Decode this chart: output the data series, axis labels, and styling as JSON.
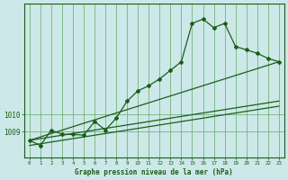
{
  "xlabel": "Graphe pression niveau de la mer (hPa)",
  "bg_color": "#cce8e8",
  "grid_color": "#66aa66",
  "line_color": "#1a5e1a",
  "xlim_min": -0.5,
  "xlim_max": 23.5,
  "ylim_min": 1007.5,
  "ylim_max": 1016.5,
  "yticks": [
    1009,
    1010
  ],
  "xtick_labels": [
    "0",
    "1",
    "2",
    "3",
    "4",
    "5",
    "6",
    "7",
    "8",
    "9",
    "10",
    "11",
    "12",
    "13",
    "14",
    "15",
    "16",
    "17",
    "18",
    "19",
    "20",
    "21",
    "22",
    "23"
  ],
  "main_x": [
    0,
    1,
    2,
    3,
    4,
    5,
    6,
    7,
    8,
    9,
    10,
    11,
    12,
    13,
    14,
    15,
    16,
    17,
    18,
    19,
    20,
    21,
    22,
    23
  ],
  "main_y": [
    1008.5,
    1008.2,
    1009.1,
    1008.85,
    1008.85,
    1008.8,
    1009.6,
    1009.1,
    1009.8,
    1010.8,
    1011.4,
    1011.7,
    1012.1,
    1012.6,
    1013.1,
    1015.35,
    1015.6,
    1015.1,
    1015.35,
    1014.0,
    1013.8,
    1013.6,
    1013.3,
    1013.1
  ],
  "trend1_x": [
    0,
    23
  ],
  "trend1_y": [
    1008.5,
    1013.1
  ],
  "trend2_x": [
    0,
    23
  ],
  "trend2_y": [
    1008.2,
    1010.5
  ],
  "trend3_x": [
    0,
    23
  ],
  "trend3_y": [
    1008.5,
    1010.8
  ]
}
